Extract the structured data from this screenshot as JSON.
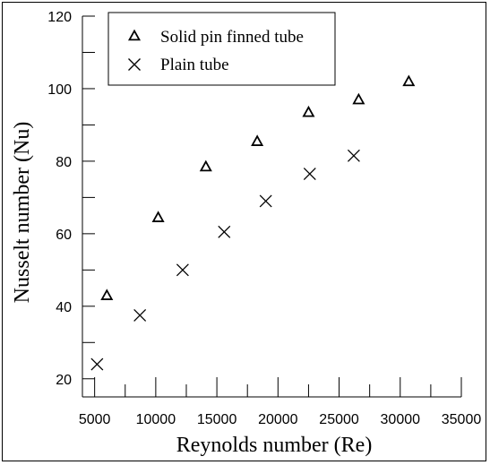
{
  "chart_data": {
    "type": "scatter",
    "xlabel": "Reynolds number (Re)",
    "ylabel": "Nusselt number (Nu)",
    "xlim": [
      4000,
      35000
    ],
    "ylim": [
      15,
      120
    ],
    "xticks": [
      5000,
      10000,
      15000,
      20000,
      25000,
      30000,
      35000
    ],
    "xtick_labels": [
      "5000",
      "10000",
      "15000",
      "20000",
      "25000",
      "30000",
      "35000"
    ],
    "yticks": [
      20,
      40,
      60,
      80,
      100,
      120
    ],
    "ytick_labels": [
      "20",
      "40",
      "60",
      "80",
      "100",
      "120"
    ],
    "grid": false,
    "legend_position": "top-left",
    "series": [
      {
        "name": "Solid pin finned tube",
        "marker": "triangle",
        "color": "#000000",
        "points": [
          {
            "x": 6000,
            "y": 43
          },
          {
            "x": 10200,
            "y": 64.5
          },
          {
            "x": 14100,
            "y": 78.5
          },
          {
            "x": 18300,
            "y": 85.5
          },
          {
            "x": 22500,
            "y": 93.5
          },
          {
            "x": 26600,
            "y": 97
          },
          {
            "x": 30700,
            "y": 102
          }
        ]
      },
      {
        "name": "Plain tube",
        "marker": "x",
        "color": "#000000",
        "points": [
          {
            "x": 5200,
            "y": 24
          },
          {
            "x": 8700,
            "y": 37.5
          },
          {
            "x": 12200,
            "y": 50
          },
          {
            "x": 15600,
            "y": 60.5
          },
          {
            "x": 19000,
            "y": 69
          },
          {
            "x": 22600,
            "y": 76.5
          },
          {
            "x": 26200,
            "y": 81.5
          }
        ]
      }
    ]
  }
}
